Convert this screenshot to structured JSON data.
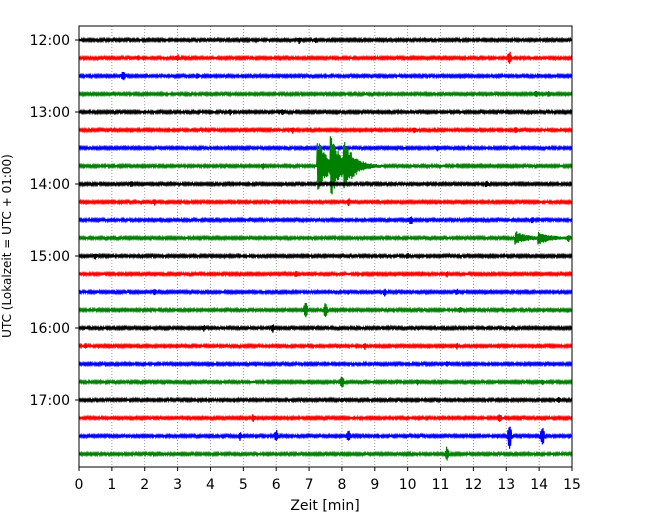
{
  "chart_data": {
    "type": "line",
    "title": "",
    "xlabel": "Zeit  [min]",
    "ylabel": "UTC (Lokalzeit = UTC + 01:00)",
    "xlim": [
      0,
      15
    ],
    "x_ticks": [
      0,
      1,
      2,
      3,
      4,
      5,
      6,
      7,
      8,
      9,
      10,
      11,
      12,
      13,
      14,
      15
    ],
    "x_tick_labels": [
      "0",
      "1",
      "2",
      "3",
      "4",
      "5",
      "6",
      "7",
      "8",
      "9",
      "10",
      "11",
      "12",
      "13",
      "14",
      "15"
    ],
    "y_tick_labels": [
      "12:00",
      "13:00",
      "14:00",
      "15:00",
      "16:00",
      "17:00"
    ],
    "grid": "vertical dotted at each minute",
    "traces_per_hour": 4,
    "trace_minutes": 15,
    "series": [
      {
        "start": "12:00",
        "color": "#000000",
        "events": [
          {
            "t": 6.7,
            "amp": 0.35
          },
          {
            "t": 7.2,
            "amp": 0.25
          }
        ]
      },
      {
        "start": "12:15",
        "color": "#ff0000",
        "events": [
          {
            "t": 1.8,
            "amp": 0.3
          },
          {
            "t": 3.0,
            "amp": 0.35
          },
          {
            "t": 13.1,
            "amp": 0.8
          }
        ]
      },
      {
        "start": "12:30",
        "color": "#0000ff",
        "events": [
          {
            "t": 1.35,
            "amp": 0.6
          },
          {
            "t": 3.6,
            "amp": 0.3
          }
        ]
      },
      {
        "start": "12:45",
        "color": "#008000",
        "events": [
          {
            "t": 13.9,
            "amp": 0.35
          },
          {
            "t": 14.3,
            "amp": 0.3
          }
        ]
      },
      {
        "start": "13:00",
        "color": "#000000",
        "events": [
          {
            "t": 4.6,
            "amp": 0.3
          },
          {
            "t": 6.2,
            "amp": 0.3
          }
        ]
      },
      {
        "start": "13:15",
        "color": "#ff0000",
        "events": [
          {
            "t": 6.5,
            "amp": 0.3
          },
          {
            "t": 10.2,
            "amp": 0.35
          },
          {
            "t": 13.3,
            "amp": 0.35
          }
        ]
      },
      {
        "start": "13:30",
        "color": "#0000ff",
        "events": [
          {
            "t": 8.1,
            "amp": 0.25
          },
          {
            "t": 10.9,
            "amp": 0.25
          }
        ]
      },
      {
        "start": "13:45",
        "color": "#008000",
        "events": [
          {
            "t": 5.6,
            "amp": 0.3
          },
          {
            "t": 7.3,
            "amp": 2.6,
            "long": true
          },
          {
            "t": 7.7,
            "amp": 2.4,
            "long": true
          },
          {
            "t": 8.1,
            "amp": 1.8,
            "long": true
          }
        ]
      },
      {
        "start": "14:00",
        "color": "#000000",
        "events": [
          {
            "t": 1.6,
            "amp": 0.3
          },
          {
            "t": 12.4,
            "amp": 0.35
          }
        ]
      },
      {
        "start": "14:15",
        "color": "#ff0000",
        "events": [
          {
            "t": 2.3,
            "amp": 0.35
          },
          {
            "t": 8.2,
            "amp": 0.35
          }
        ]
      },
      {
        "start": "14:30",
        "color": "#0000ff",
        "events": [
          {
            "t": 10.1,
            "amp": 0.5
          },
          {
            "t": 13.8,
            "amp": 0.4
          }
        ]
      },
      {
        "start": "14:45",
        "color": "#008000",
        "events": [
          {
            "t": 13.3,
            "amp": 0.65,
            "long": true
          },
          {
            "t": 14.0,
            "amp": 0.6,
            "long": true
          },
          {
            "t": 14.9,
            "amp": 0.3
          }
        ]
      },
      {
        "start": "15:00",
        "color": "#000000",
        "events": [
          {
            "t": 0.5,
            "amp": 0.3
          },
          {
            "t": 10.0,
            "amp": 0.3
          }
        ]
      },
      {
        "start": "15:15",
        "color": "#ff0000",
        "events": [
          {
            "t": 6.6,
            "amp": 0.35
          },
          {
            "t": 11.2,
            "amp": 0.3
          }
        ]
      },
      {
        "start": "15:30",
        "color": "#0000ff",
        "events": [
          {
            "t": 2.3,
            "amp": 0.3
          },
          {
            "t": 9.3,
            "amp": 0.35
          },
          {
            "t": 11.5,
            "amp": 0.3
          }
        ]
      },
      {
        "start": "15:45",
        "color": "#008000",
        "events": [
          {
            "t": 6.9,
            "amp": 1.0
          },
          {
            "t": 7.5,
            "amp": 1.0
          },
          {
            "t": 11.6,
            "amp": 0.3
          }
        ]
      },
      {
        "start": "16:00",
        "color": "#000000",
        "events": [
          {
            "t": 3.8,
            "amp": 0.3
          },
          {
            "t": 5.9,
            "amp": 0.4
          }
        ]
      },
      {
        "start": "16:15",
        "color": "#ff0000",
        "events": [
          {
            "t": 0.2,
            "amp": 0.3
          },
          {
            "t": 8.7,
            "amp": 0.35
          },
          {
            "t": 11.5,
            "amp": 0.3
          }
        ]
      },
      {
        "start": "16:30",
        "color": "#0000ff",
        "events": [
          {
            "t": 11.2,
            "amp": 0.25
          }
        ]
      },
      {
        "start": "16:45",
        "color": "#008000",
        "events": [
          {
            "t": 8.0,
            "amp": 0.8
          },
          {
            "t": 10.3,
            "amp": 0.3
          },
          {
            "t": 14.1,
            "amp": 0.3
          }
        ]
      },
      {
        "start": "17:00",
        "color": "#000000",
        "events": [
          {
            "t": 8.0,
            "amp": 0.25
          },
          {
            "t": 14.6,
            "amp": 0.3
          }
        ]
      },
      {
        "start": "17:15",
        "color": "#ff0000",
        "events": [
          {
            "t": 5.3,
            "amp": 0.35
          },
          {
            "t": 12.8,
            "amp": 0.4
          }
        ]
      },
      {
        "start": "17:30",
        "color": "#0000ff",
        "events": [
          {
            "t": 4.9,
            "amp": 0.4
          },
          {
            "t": 6.0,
            "amp": 0.7
          },
          {
            "t": 8.2,
            "amp": 0.6
          },
          {
            "t": 13.1,
            "amp": 1.7
          },
          {
            "t": 14.1,
            "amp": 1.3
          }
        ]
      },
      {
        "start": "17:45",
        "color": "#008000",
        "events": [
          {
            "t": 11.2,
            "amp": 0.9
          }
        ]
      }
    ]
  }
}
